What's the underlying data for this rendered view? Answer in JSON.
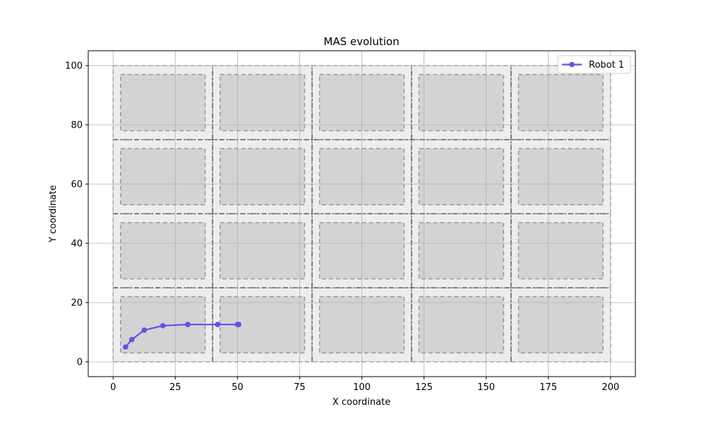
{
  "chart_data": {
    "type": "line",
    "title": "MAS evolution",
    "xlabel": "X coordinate",
    "ylabel": "Y coordinate",
    "xlim": [
      -10,
      210
    ],
    "ylim": [
      -5,
      105
    ],
    "xticks": [
      0,
      25,
      50,
      75,
      100,
      125,
      150,
      175,
      200
    ],
    "yticks": [
      0,
      20,
      40,
      60,
      80,
      100
    ],
    "grid": true,
    "legend_position": "top-right",
    "blocks": {
      "columns": [
        [
          0,
          40
        ],
        [
          40,
          80
        ],
        [
          80,
          120
        ],
        [
          120,
          160
        ],
        [
          160,
          200
        ]
      ],
      "rows": [
        [
          0,
          25
        ],
        [
          25,
          50
        ],
        [
          50,
          75
        ],
        [
          75,
          100
        ]
      ],
      "inner_margin": 3
    },
    "series": [
      {
        "name": "Robot 1",
        "color": "#6a4ee6",
        "x": [
          5,
          7.5,
          12.5,
          20,
          30,
          42,
          50,
          50.5
        ],
        "y": [
          5,
          7.5,
          10.7,
          12.2,
          12.6,
          12.6,
          12.6,
          12.6
        ]
      }
    ],
    "colors": {
      "block_fill": "#ededed",
      "inner_fill": "#d3d3d3",
      "dashed_line": "#999999",
      "street_line": "#555555",
      "grid": "#b0b0b0"
    }
  }
}
